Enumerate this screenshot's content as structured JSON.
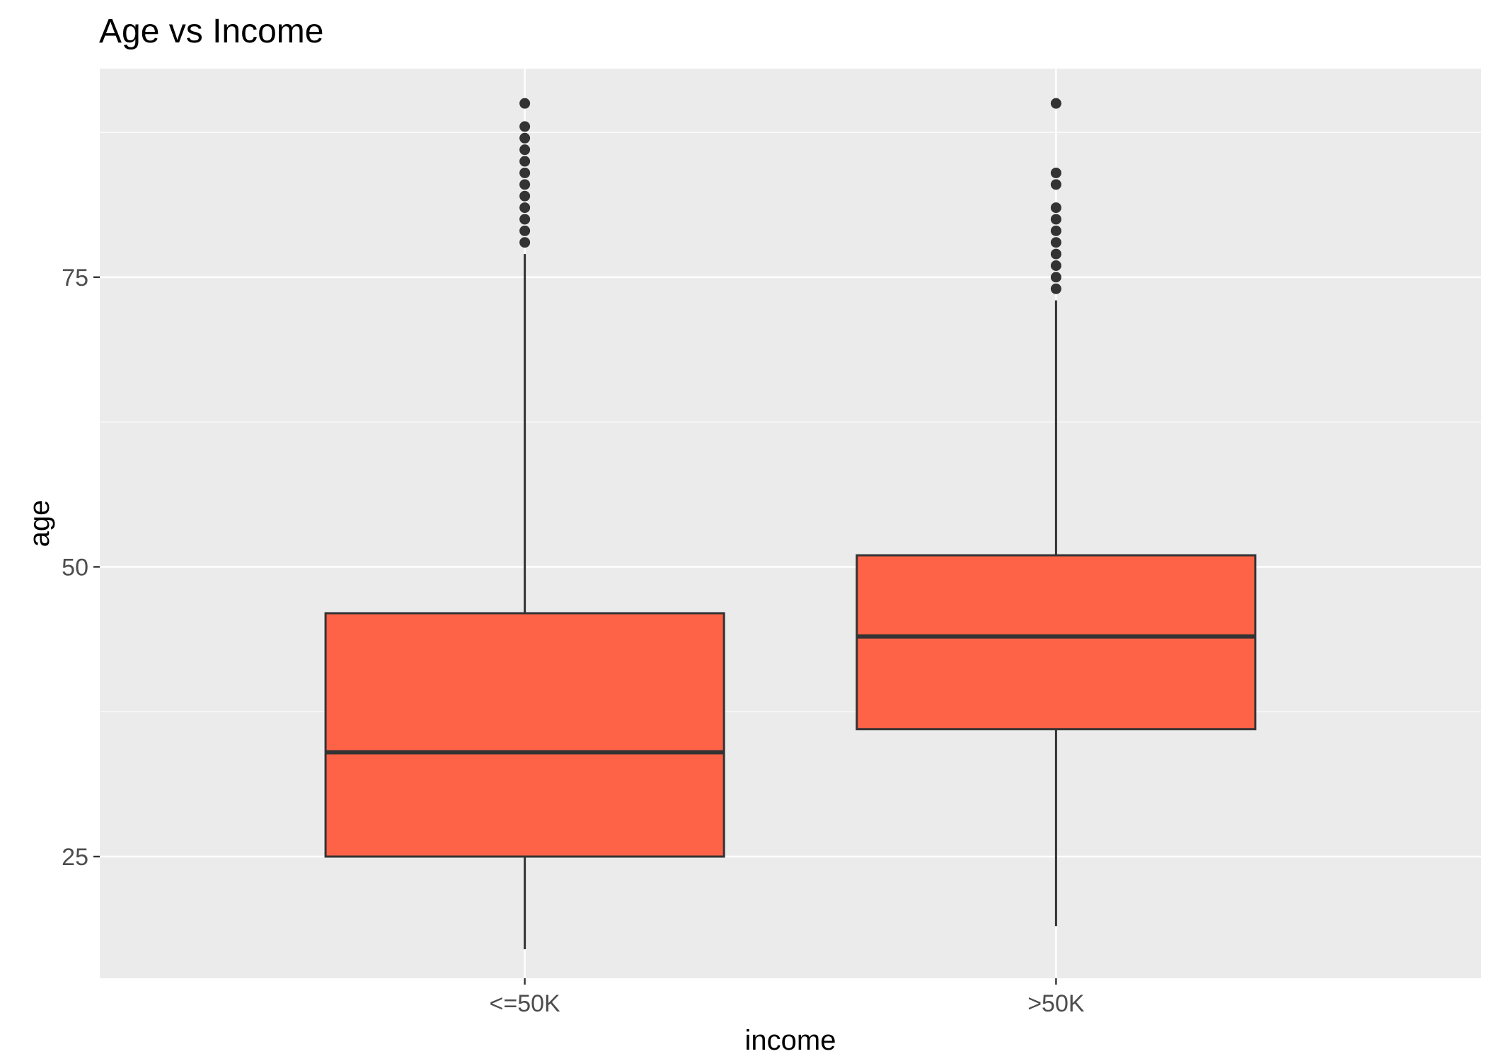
{
  "chart_data": {
    "type": "box",
    "title": "Age vs Income",
    "xlabel": "income",
    "ylabel": "age",
    "ylim": [
      14.5,
      93
    ],
    "yticks": [
      25,
      50,
      75
    ],
    "grid": true,
    "colors": {
      "panel_bg": "#ebebeb",
      "grid": "#ffffff",
      "box_fill": "#ff6347",
      "box_line": "#333333",
      "tick_text": "#4d4d4d"
    },
    "categories": [
      "<=50K",
      ">50K"
    ],
    "boxes": [
      {
        "category": "<=50K",
        "whisker_low": 17,
        "q1": 25,
        "median": 34,
        "q3": 46,
        "whisker_high": 77,
        "outliers": [
          78,
          79,
          80,
          81,
          82,
          83,
          84,
          85,
          86,
          87,
          88,
          90
        ]
      },
      {
        "category": ">50K",
        "whisker_low": 19,
        "q1": 36,
        "median": 44,
        "q3": 51,
        "whisker_high": 73,
        "outliers": [
          74,
          75,
          76,
          77,
          78,
          79,
          80,
          81,
          83,
          84,
          90
        ]
      }
    ]
  }
}
